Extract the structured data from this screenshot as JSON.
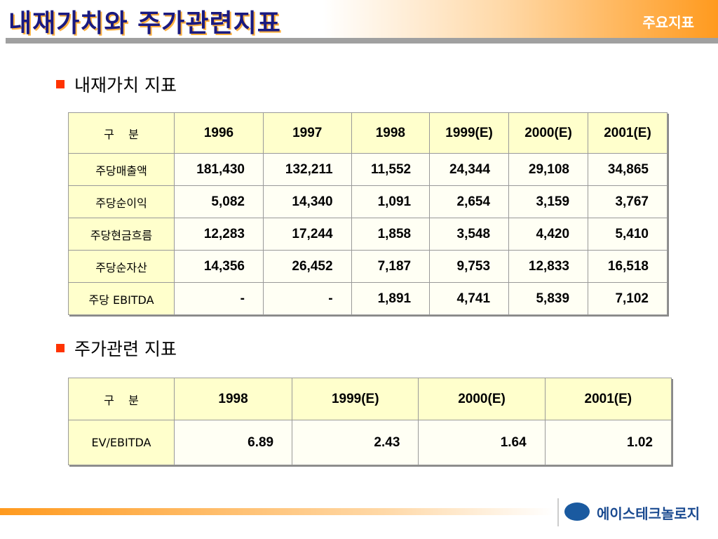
{
  "header": {
    "title": "내재가치와 주가관련지표",
    "tag": "주요지표"
  },
  "section1": {
    "heading": "내재가치 지표"
  },
  "table1": {
    "columns": [
      "구    분",
      "1996",
      "1997",
      "1998",
      "1999(E)",
      "2000(E)",
      "2001(E)"
    ],
    "rows": [
      [
        "주당매출액",
        "181,430",
        "132,211",
        "11,552",
        "24,344",
        "29,108",
        "34,865"
      ],
      [
        "주당순이익",
        "5,082",
        "14,340",
        "1,091",
        "2,654",
        "3,159",
        "3,767"
      ],
      [
        "주당현금흐름",
        "12,283",
        "17,244",
        "1,858",
        "3,548",
        "4,420",
        "5,410"
      ],
      [
        "주당순자산",
        "14,356",
        "26,452",
        "7,187",
        "9,753",
        "12,833",
        "16,518"
      ],
      [
        "주당 EBITDA",
        "-",
        "-",
        "1,891",
        "4,741",
        "5,839",
        "7,102"
      ]
    ]
  },
  "section2": {
    "heading": "주가관련 지표"
  },
  "table2": {
    "columns": [
      "구    분",
      "1998",
      "1999(E)",
      "2000(E)",
      "2001(E)"
    ],
    "rows": [
      [
        "EV/EBITDA",
        "6.89",
        "2.43",
        "1.64",
        "1.02"
      ]
    ]
  },
  "footer": {
    "logo": "에이스테크놀로지"
  }
}
